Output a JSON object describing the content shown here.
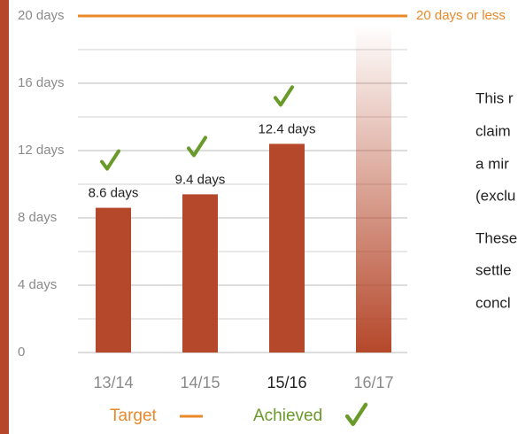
{
  "chart_data": {
    "type": "bar",
    "categories": [
      "13/14",
      "14/15",
      "15/16",
      "16/17"
    ],
    "values": [
      8.6,
      9.4,
      12.4,
      19.5
    ],
    "value_labels": [
      "8.6 days",
      "9.4 days",
      "12.4 days",
      null
    ],
    "achieved": [
      true,
      true,
      true,
      false
    ],
    "category_label_colors": [
      "#8a8a8a",
      "#8a8a8a",
      "#222222",
      "#8a8a8a"
    ],
    "color": "#b5482b",
    "gradient_last": true,
    "ylim": [
      0,
      20
    ],
    "yticks": [
      0,
      {
        "value": 4,
        "label": "4 days"
      },
      {
        "value": 8,
        "label": "8 days"
      },
      {
        "value": 12,
        "label": "12 days"
      },
      {
        "value": 16,
        "label": "16 days"
      },
      {
        "value": 20,
        "label": "20 days"
      }
    ],
    "minor_yticks": [
      2,
      6,
      10,
      14,
      18
    ],
    "grid": true,
    "target": {
      "value": 20,
      "label": "20 days or less",
      "color": "#e8892a"
    },
    "legend": {
      "target": "Target",
      "achieved": "Achieved",
      "achieved_color": "#6a9a2a"
    },
    "side_text": [
      "This r",
      "claim",
      "a mir",
      "(exclu",
      "These",
      "settle",
      "concl"
    ]
  }
}
